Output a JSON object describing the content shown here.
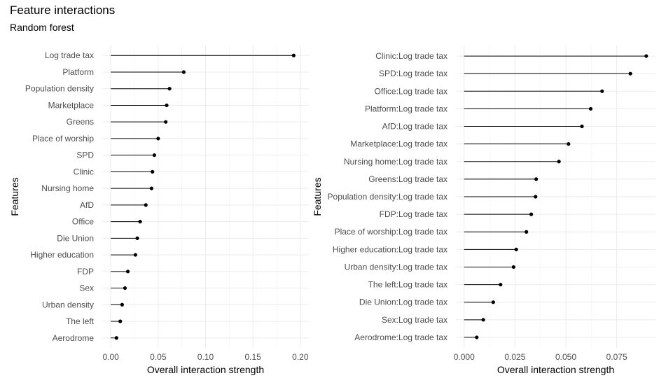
{
  "figure": {
    "title": "Feature interactions",
    "subtitle": "Random forest"
  },
  "chart_data": [
    {
      "type": "lollipop",
      "xlabel": "Overall interaction strength",
      "ylabel": "Features",
      "xlim": [
        0,
        0.2
      ],
      "xticks": [
        0,
        0.05,
        0.1,
        0.15,
        0.2
      ],
      "xtick_labels": [
        "0.00",
        "0.05",
        "0.10",
        "0.15",
        "0.20"
      ],
      "grid": true,
      "categories": [
        "Log trade tax",
        "Platform",
        "Population density",
        "Marketplace",
        "Greens",
        "Place of worship",
        "SPD",
        "Clinic",
        "Nursing home",
        "AfD",
        "Office",
        "Die Union",
        "Higher education",
        "FDP",
        "Sex",
        "Urban density",
        "The left",
        "Aerodrome"
      ],
      "values": [
        0.193,
        0.077,
        0.062,
        0.059,
        0.058,
        0.05,
        0.046,
        0.044,
        0.043,
        0.037,
        0.031,
        0.028,
        0.026,
        0.018,
        0.015,
        0.012,
        0.01,
        0.006
      ]
    },
    {
      "type": "lollipop",
      "xlabel": "Overall interaction strength",
      "ylabel": "Features",
      "xlim": [
        0,
        0.09
      ],
      "xticks": [
        0,
        0.025,
        0.05,
        0.075
      ],
      "xtick_labels": [
        "0.000",
        "0.025",
        "0.050",
        "0.075"
      ],
      "grid": true,
      "categories": [
        "Clinic:Log trade tax",
        "SPD:Log trade tax",
        "Office:Log trade tax",
        "Platform:Log trade tax",
        "AfD:Log trade tax",
        "Marketplace:Log trade tax",
        "Nursing home:Log trade tax",
        "Greens:Log trade tax",
        "Population density:Log trade tax",
        "FDP:Log trade tax",
        "Place of worship:Log trade tax",
        "Higher education:Log trade tax",
        "Urban density:Log trade tax",
        "The left:Log trade tax",
        "Die Union:Log trade tax",
        "Sex:Log trade tax",
        "Aerodrome:Log trade tax"
      ],
      "values": [
        0.0895,
        0.0817,
        0.0678,
        0.0622,
        0.0579,
        0.0513,
        0.0466,
        0.0354,
        0.0351,
        0.033,
        0.0306,
        0.0256,
        0.0243,
        0.0179,
        0.0143,
        0.0094,
        0.0062
      ]
    }
  ]
}
